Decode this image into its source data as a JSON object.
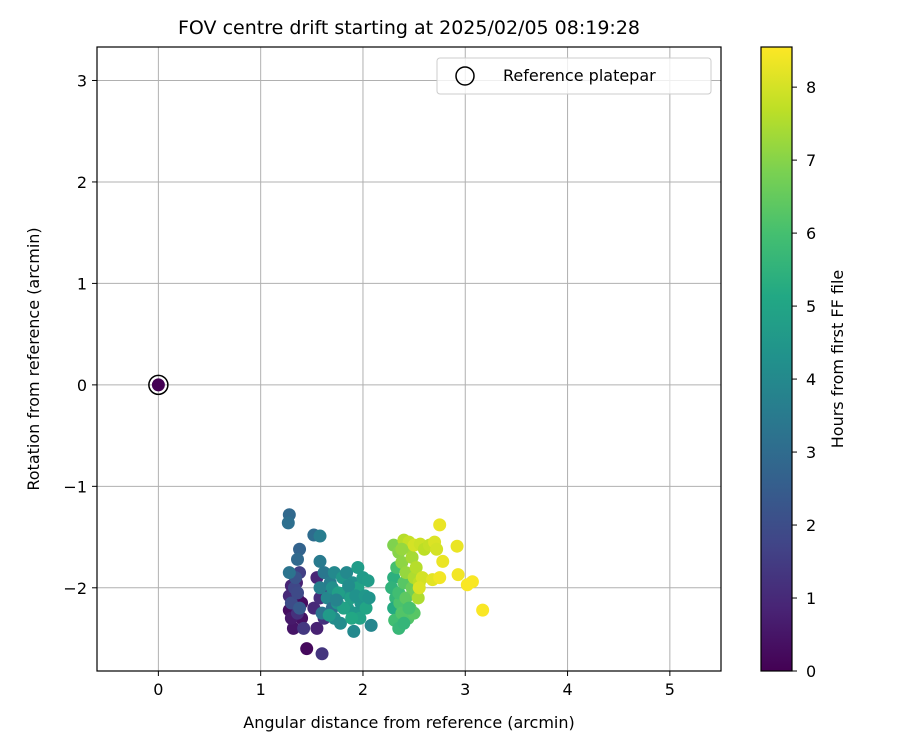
{
  "chart_data": {
    "type": "scatter",
    "title": "FOV centre drift starting at 2025/02/05 08:19:28",
    "xlabel": "Angular distance from reference (arcmin)",
    "ylabel": "Rotation from reference (arcmin)",
    "xlim": [
      -0.6,
      5.5
    ],
    "ylim": [
      -2.82,
      3.33
    ],
    "xticks": [
      0,
      1,
      2,
      3,
      4,
      5
    ],
    "xtick_labels": [
      "0",
      "1",
      "2",
      "3",
      "4",
      "5"
    ],
    "yticks": [
      -2,
      -1,
      0,
      1,
      2,
      3
    ],
    "ytick_labels": [
      "−2",
      "−1",
      "0",
      "1",
      "2",
      "3"
    ],
    "grid": true,
    "legend": {
      "position": "top-right",
      "entries": [
        "Reference platepar"
      ]
    },
    "reference_point": {
      "x": 0,
      "y": 0,
      "hours": 0
    },
    "colorbar": {
      "label": "Hours from first FF file",
      "colormap": "viridis",
      "range": [
        0,
        8.55
      ],
      "ticks": [
        0,
        1,
        2,
        3,
        4,
        5,
        6,
        7,
        8
      ],
      "tick_labels": [
        "0",
        "1",
        "2",
        "3",
        "4",
        "5",
        "6",
        "7",
        "8"
      ]
    },
    "points": [
      [
        1.28,
        -2.22,
        0.3
      ],
      [
        1.32,
        -2.4,
        0.5
      ],
      [
        1.36,
        -2.1,
        0.7
      ],
      [
        1.3,
        -1.98,
        0.9
      ],
      [
        1.4,
        -2.3,
        0.4
      ],
      [
        1.34,
        -2.05,
        0.6
      ],
      [
        1.45,
        -2.6,
        0.2
      ],
      [
        1.55,
        -2.4,
        0.8
      ],
      [
        1.52,
        -2.2,
        1.0
      ],
      [
        1.58,
        -2.1,
        1.1
      ],
      [
        1.6,
        -2.65,
        1.3
      ],
      [
        1.62,
        -2.3,
        1.2
      ],
      [
        1.66,
        -2.0,
        1.5
      ],
      [
        1.55,
        -1.9,
        0.9
      ],
      [
        1.4,
        -2.15,
        0.3
      ],
      [
        1.3,
        -2.3,
        0.6
      ],
      [
        1.35,
        -1.95,
        0.8
      ],
      [
        1.28,
        -2.08,
        1.0
      ],
      [
        1.36,
        -2.25,
        1.2
      ],
      [
        1.42,
        -2.4,
        1.4
      ],
      [
        1.38,
        -1.85,
        1.6
      ],
      [
        1.33,
        -2.0,
        1.8
      ],
      [
        1.3,
        -2.15,
        2.0
      ],
      [
        1.34,
        -1.9,
        2.2
      ],
      [
        1.38,
        -2.2,
        2.4
      ],
      [
        1.36,
        -2.05,
        1.9
      ],
      [
        1.28,
        -1.28,
        2.9
      ],
      [
        1.27,
        -1.36,
        3.1
      ],
      [
        1.38,
        -1.62,
        2.7
      ],
      [
        1.36,
        -1.72,
        2.9
      ],
      [
        1.52,
        -1.48,
        3.0
      ],
      [
        1.58,
        -1.49,
        3.6
      ],
      [
        1.28,
        -1.85,
        3.3
      ],
      [
        1.58,
        -1.74,
        3.5
      ],
      [
        1.58,
        -2.0,
        3.7
      ],
      [
        1.62,
        -1.85,
        3.4
      ],
      [
        1.65,
        -2.1,
        3.9
      ],
      [
        1.6,
        -2.25,
        3.3
      ],
      [
        1.7,
        -2.2,
        3.1
      ],
      [
        1.68,
        -1.95,
        3.6
      ],
      [
        1.72,
        -1.85,
        4.0
      ],
      [
        1.7,
        -2.0,
        4.2
      ],
      [
        1.75,
        -2.15,
        4.4
      ],
      [
        1.72,
        -2.3,
        4.1
      ],
      [
        1.8,
        -1.9,
        4.5
      ],
      [
        1.82,
        -2.05,
        4.3
      ],
      [
        1.85,
        -2.2,
        4.6
      ],
      [
        1.84,
        -1.85,
        4.0
      ],
      [
        1.88,
        -2.1,
        4.8
      ],
      [
        1.9,
        -1.95,
        4.2
      ],
      [
        1.92,
        -2.25,
        4.5
      ],
      [
        1.95,
        -1.8,
        4.7
      ],
      [
        1.95,
        -2.0,
        4.9
      ],
      [
        1.98,
        -2.15,
        4.4
      ],
      [
        2.0,
        -1.9,
        4.6
      ],
      [
        1.78,
        -2.35,
        4.1
      ],
      [
        1.91,
        -2.43,
        4.0
      ],
      [
        2.08,
        -2.37,
        3.9
      ],
      [
        1.76,
        -2.05,
        4.8
      ],
      [
        1.86,
        -1.98,
        4.1
      ],
      [
        1.93,
        -2.08,
        4.3
      ],
      [
        2.02,
        -2.08,
        4.5
      ],
      [
        2.05,
        -1.93,
        4.7
      ],
      [
        1.97,
        -2.3,
        4.9
      ],
      [
        2.03,
        -2.2,
        5.0
      ],
      [
        1.89,
        -2.3,
        5.1
      ],
      [
        1.81,
        -2.2,
        4.9
      ],
      [
        2.06,
        -2.1,
        4.4
      ],
      [
        1.67,
        -2.27,
        4.6
      ],
      [
        1.74,
        -2.12,
        3.8
      ],
      [
        2.3,
        -1.9,
        5.4
      ],
      [
        2.32,
        -2.1,
        5.6
      ],
      [
        2.34,
        -2.3,
        5.8
      ],
      [
        2.3,
        -2.2,
        5.2
      ],
      [
        2.28,
        -2.0,
        5.5
      ],
      [
        2.31,
        -2.32,
        5.9
      ],
      [
        2.35,
        -2.4,
        5.7
      ],
      [
        2.33,
        -1.8,
        6.0
      ],
      [
        2.36,
        -2.15,
        6.1
      ],
      [
        2.38,
        -2.25,
        6.2
      ],
      [
        2.35,
        -2.05,
        5.9
      ],
      [
        2.4,
        -1.95,
        6.3
      ],
      [
        2.42,
        -2.1,
        6.4
      ],
      [
        2.44,
        -2.3,
        6.2
      ],
      [
        2.46,
        -2.2,
        6.5
      ],
      [
        2.48,
        -2.0,
        6.6
      ],
      [
        2.5,
        -2.25,
        6.3
      ],
      [
        2.52,
        -2.05,
        6.7
      ],
      [
        2.3,
        -1.58,
        6.9
      ],
      [
        2.35,
        -1.65,
        7.0
      ],
      [
        2.38,
        -1.75,
        7.1
      ],
      [
        2.42,
        -1.85,
        7.2
      ],
      [
        2.45,
        -1.6,
        7.3
      ],
      [
        2.48,
        -1.7,
        7.4
      ],
      [
        2.5,
        -1.9,
        7.5
      ],
      [
        2.52,
        -1.8,
        7.6
      ],
      [
        2.55,
        -1.95,
        7.7
      ],
      [
        2.54,
        -2.1,
        7.5
      ],
      [
        2.4,
        -1.53,
        7.6
      ],
      [
        2.45,
        -1.55,
        7.8
      ],
      [
        2.5,
        -1.58,
        8.0
      ],
      [
        2.56,
        -1.57,
        7.9
      ],
      [
        2.58,
        -1.9,
        8.0
      ],
      [
        2.6,
        -1.62,
        7.7
      ],
      [
        2.65,
        -1.58,
        7.8
      ],
      [
        2.68,
        -1.92,
        8.2
      ],
      [
        2.7,
        -1.55,
        8.1
      ],
      [
        2.72,
        -1.62,
        8.0
      ],
      [
        2.75,
        -1.38,
        8.3
      ],
      [
        2.75,
        -1.9,
        8.4
      ],
      [
        2.78,
        -1.74,
        8.3
      ],
      [
        2.92,
        -1.59,
        8.3
      ],
      [
        2.93,
        -1.87,
        8.4
      ],
      [
        3.02,
        -1.97,
        8.5
      ],
      [
        3.07,
        -1.94,
        8.5
      ],
      [
        3.17,
        -2.22,
        8.5
      ],
      [
        2.55,
        -2.0,
        8.1
      ],
      [
        2.45,
        -2.2,
        6.0
      ],
      [
        2.4,
        -2.35,
        5.6
      ],
      [
        2.38,
        -1.62,
        7.2
      ]
    ]
  }
}
